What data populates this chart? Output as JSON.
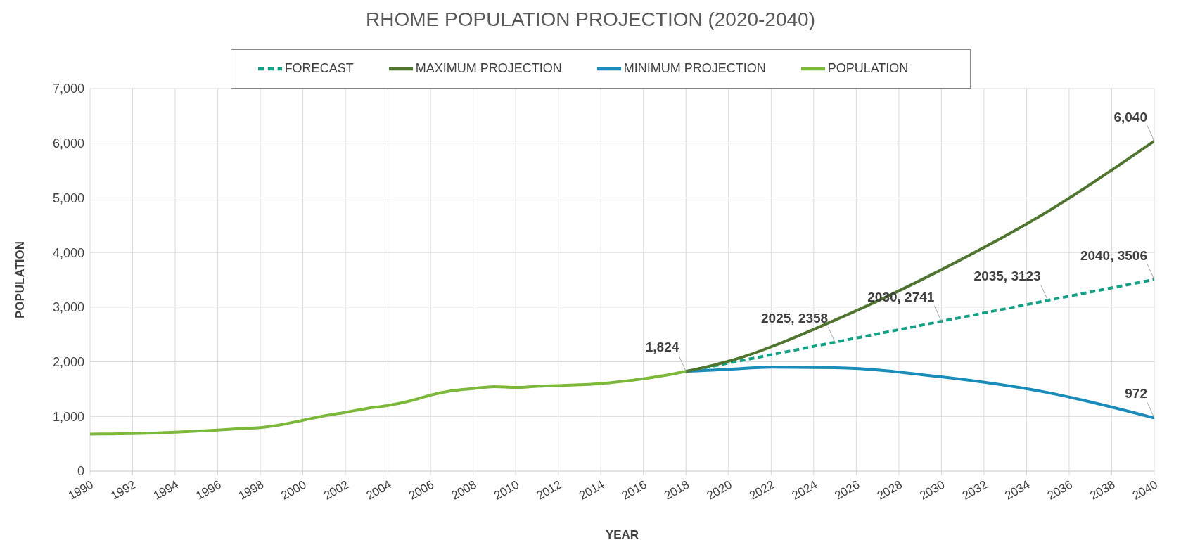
{
  "chart_data": {
    "type": "line",
    "title": "RHOME POPULATION PROJECTION (2020-2040)",
    "xlabel": "YEAR",
    "ylabel": "POPULATION",
    "xlim": [
      1990,
      2040
    ],
    "xticks": [
      1990,
      1992,
      1994,
      1996,
      1998,
      2000,
      2002,
      2004,
      2006,
      2008,
      2010,
      2012,
      2014,
      2016,
      2018,
      2020,
      2022,
      2024,
      2026,
      2028,
      2030,
      2032,
      2034,
      2036,
      2038,
      2040
    ],
    "ylim": [
      0,
      7000
    ],
    "yticks": [
      0,
      {
        "value": 1000,
        "label": "1,000"
      },
      {
        "value": 2000,
        "label": "2,000"
      },
      {
        "value": 3000,
        "label": "3,000"
      },
      {
        "value": 4000,
        "label": "4,000"
      },
      {
        "value": 5000,
        "label": "5,000"
      },
      {
        "value": 6000,
        "label": "6,000"
      },
      {
        "value": 7000,
        "label": "7,000"
      }
    ],
    "grid": true,
    "legend": "top",
    "marker": "none",
    "series": [
      {
        "name": "POPULATION",
        "color": "#7cb83a",
        "x": [
          1990,
          1991,
          1992,
          1993,
          1994,
          1995,
          1996,
          1997,
          1998,
          1999,
          2000,
          2001,
          2002,
          2003,
          2004,
          2005,
          2006,
          2007,
          2008,
          2009,
          2010,
          2011,
          2012,
          2013,
          2014,
          2015,
          2016,
          2017,
          2018
        ],
        "values": [
          675,
          680,
          685,
          695,
          710,
          730,
          750,
          775,
          795,
          850,
          930,
          1010,
          1075,
          1145,
          1200,
          1280,
          1390,
          1470,
          1510,
          1545,
          1530,
          1550,
          1565,
          1580,
          1600,
          1640,
          1690,
          1750,
          1824
        ]
      },
      {
        "name": "FORECAST",
        "color": "#14a085",
        "line_style": "dashed",
        "x": [
          2018,
          2025,
          2030,
          2035,
          2040
        ],
        "values": [
          1824,
          2358,
          2741,
          3123,
          3506
        ]
      },
      {
        "name": "MINIMUM PROJECTION",
        "color": "#1a8cba",
        "x": [
          2018,
          2020,
          2022,
          2025,
          2030,
          2035,
          2040
        ],
        "values": [
          1824,
          1862,
          1900,
          1890,
          1724,
          1436,
          972
        ]
      },
      {
        "name": "MAXIMUM PROJECTION",
        "color": "#4f7530",
        "x": [
          2018,
          2020,
          2025,
          2030,
          2035,
          2040
        ],
        "values": [
          1824,
          2010,
          2762,
          3685,
          4751,
          6040
        ]
      }
    ],
    "annotations": [
      {
        "text": "1,824",
        "x": 2018,
        "y": 1824
      },
      {
        "text": "2025, 2358",
        "x": 2025,
        "y": 2358
      },
      {
        "text": "2030, 2741",
        "x": 2030,
        "y": 2741
      },
      {
        "text": "2035, 3123",
        "x": 2035,
        "y": 3123
      },
      {
        "text": "2040, 3506",
        "x": 2040,
        "y": 3506
      },
      {
        "text": "6,040",
        "x": 2040,
        "y": 6040
      },
      {
        "text": "972",
        "x": 2040,
        "y": 972
      }
    ]
  }
}
